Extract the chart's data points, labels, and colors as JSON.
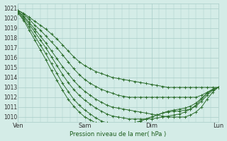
{
  "title": "",
  "xlabel": "Pression niveau de la mer( hPa )",
  "ylabel": "",
  "ylim": [
    1009.5,
    1021.5
  ],
  "yticks": [
    1010,
    1011,
    1012,
    1013,
    1014,
    1015,
    1016,
    1017,
    1018,
    1019,
    1020,
    1021
  ],
  "xtick_labels": [
    "Ven",
    "Sam",
    "Dim",
    "Lun"
  ],
  "xtick_positions": [
    0,
    36,
    72,
    108
  ],
  "x_total": 108,
  "bg_color": "#d4ece7",
  "grid_color": "#a8cdc8",
  "line_color": "#2d6e2d",
  "marker": "+",
  "marker_size": 3,
  "line_width": 0.7,
  "series": [
    [
      1020.8,
      1020.5,
      1020.1,
      1019.7,
      1019.3,
      1018.9,
      1018.4,
      1017.9,
      1017.3,
      1016.7,
      1016.1,
      1015.6,
      1015.2,
      1014.9,
      1014.6,
      1014.4,
      1014.2,
      1014.0,
      1013.9,
      1013.8,
      1013.7,
      1013.6,
      1013.5,
      1013.4,
      1013.3,
      1013.2,
      1013.1,
      1013.0,
      1013.0,
      1013.0,
      1013.0,
      1013.0,
      1013.0,
      1013.0,
      1013.0,
      1013.0,
      1013.0
    ],
    [
      1020.8,
      1020.4,
      1019.9,
      1019.3,
      1018.8,
      1018.2,
      1017.6,
      1017.0,
      1016.3,
      1015.6,
      1014.9,
      1014.3,
      1013.8,
      1013.4,
      1013.1,
      1012.8,
      1012.6,
      1012.4,
      1012.2,
      1012.1,
      1012.0,
      1012.0,
      1012.0,
      1012.0,
      1012.0,
      1012.0,
      1012.0,
      1012.0,
      1012.0,
      1012.0,
      1012.0,
      1012.0,
      1012.0,
      1012.2,
      1012.5,
      1012.8,
      1013.0
    ],
    [
      1020.7,
      1020.2,
      1019.6,
      1018.9,
      1018.2,
      1017.5,
      1016.7,
      1015.9,
      1015.1,
      1014.4,
      1013.7,
      1013.1,
      1012.6,
      1012.2,
      1011.8,
      1011.5,
      1011.2,
      1011.0,
      1010.9,
      1010.8,
      1010.7,
      1010.6,
      1010.5,
      1010.4,
      1010.3,
      1010.2,
      1010.1,
      1010.0,
      1010.0,
      1010.0,
      1010.0,
      1010.2,
      1010.5,
      1011.0,
      1011.8,
      1012.5,
      1013.0
    ],
    [
      1020.7,
      1020.1,
      1019.4,
      1018.6,
      1017.8,
      1017.0,
      1016.1,
      1015.2,
      1014.3,
      1013.5,
      1012.8,
      1012.2,
      1011.7,
      1011.3,
      1010.9,
      1010.6,
      1010.3,
      1010.1,
      1010.0,
      1009.9,
      1009.8,
      1009.8,
      1009.8,
      1009.8,
      1009.8,
      1009.9,
      1010.0,
      1010.1,
      1010.2,
      1010.3,
      1010.5,
      1010.8,
      1011.2,
      1011.8,
      1012.4,
      1012.8,
      1013.0
    ],
    [
      1020.6,
      1019.9,
      1019.1,
      1018.2,
      1017.3,
      1016.4,
      1015.4,
      1014.4,
      1013.4,
      1012.6,
      1011.8,
      1011.2,
      1010.7,
      1010.3,
      1009.9,
      1009.6,
      1009.4,
      1009.2,
      1009.2,
      1009.2,
      1009.3,
      1009.4,
      1009.6,
      1009.8,
      1010.0,
      1010.2,
      1010.4,
      1010.6,
      1010.7,
      1010.8,
      1010.9,
      1011.1,
      1011.4,
      1011.9,
      1012.4,
      1012.8,
      1013.0
    ],
    [
      1020.5,
      1019.8,
      1018.8,
      1017.8,
      1016.8,
      1015.8,
      1014.7,
      1013.7,
      1012.7,
      1011.8,
      1011.1,
      1010.5,
      1010.0,
      1009.7,
      1009.4,
      1009.2,
      1009.0,
      1009.0,
      1009.0,
      1009.1,
      1009.2,
      1009.4,
      1009.6,
      1009.8,
      1010.0,
      1010.2,
      1010.4,
      1010.5,
      1010.6,
      1010.6,
      1010.7,
      1010.8,
      1011.1,
      1011.6,
      1012.2,
      1012.7,
      1013.0
    ]
  ]
}
